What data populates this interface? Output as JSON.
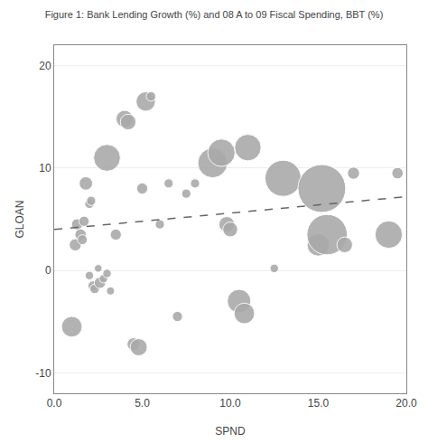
{
  "chart_data": {
    "type": "scatter",
    "title": "Figure 1: Bank Lending Growth (%) and 08 A to 09 Fiscal Spending, BBT (%)",
    "xlabel": "SPND",
    "ylabel": "GLOAN",
    "xlim": [
      0.0,
      20.0
    ],
    "ylim": [
      -12,
      22
    ],
    "xticks": [
      {
        "value": 0.0,
        "label": "0.0"
      },
      {
        "value": 5.0,
        "label": "5.0"
      },
      {
        "value": 10.0,
        "label": "10.0"
      },
      {
        "value": 15.0,
        "label": "15.0"
      },
      {
        "value": 20.0,
        "label": "20.0"
      }
    ],
    "yticks": [
      -10,
      0,
      10,
      20
    ],
    "grid": "y",
    "series": [
      {
        "type": "scatter",
        "marker": "circle",
        "color": "#aaaaaa",
        "x": [
          1.0,
          1.2,
          1.3,
          1.5,
          1.6,
          1.7,
          1.8,
          2.0,
          2.0,
          2.1,
          2.2,
          2.3,
          2.5,
          2.6,
          2.8,
          3.0,
          3.0,
          3.2,
          3.5,
          4.0,
          4.2,
          4.5,
          4.8,
          5.0,
          5.2,
          5.5,
          6.0,
          6.5,
          7.0,
          7.5,
          8.0,
          9.0,
          9.5,
          9.8,
          10.0,
          10.5,
          10.8,
          11.0,
          12.5,
          13.0,
          15.0,
          15.2,
          15.5,
          16.5,
          17.0,
          19.0,
          19.5
        ],
        "values": [
          -5.5,
          2.5,
          4.5,
          3.5,
          3.0,
          4.8,
          8.5,
          -0.5,
          6.5,
          6.8,
          -1.5,
          -1.8,
          0.2,
          -1.2,
          -0.8,
          -0.3,
          11.0,
          -2.0,
          3.5,
          14.8,
          14.5,
          -7.2,
          -7.5,
          8.0,
          16.5,
          17.0,
          4.5,
          8.5,
          -4.5,
          7.5,
          8.5,
          10.5,
          11.5,
          4.5,
          4.0,
          -3.0,
          -4.2,
          12.0,
          0.2,
          9.0,
          2.5,
          8.0,
          3.5,
          2.5,
          9.5,
          3.5,
          9.5
        ],
        "sizes": [
          130,
          45,
          38,
          40,
          30,
          32,
          55,
          22,
          26,
          26,
          30,
          28,
          18,
          40,
          22,
          22,
          220,
          20,
          38,
          90,
          75,
          50,
          90,
          38,
          115,
          28,
          26,
          26,
          32,
          26,
          26,
          270,
          230,
          75,
          68,
          170,
          130,
          215,
          22,
          400,
          155,
          700,
          500,
          75,
          45,
          230,
          40
        ]
      },
      {
        "type": "line",
        "line_style": "dashed",
        "color": "#666666",
        "x": [
          0.0,
          20.0
        ],
        "values": [
          4.0,
          7.2
        ]
      }
    ]
  }
}
